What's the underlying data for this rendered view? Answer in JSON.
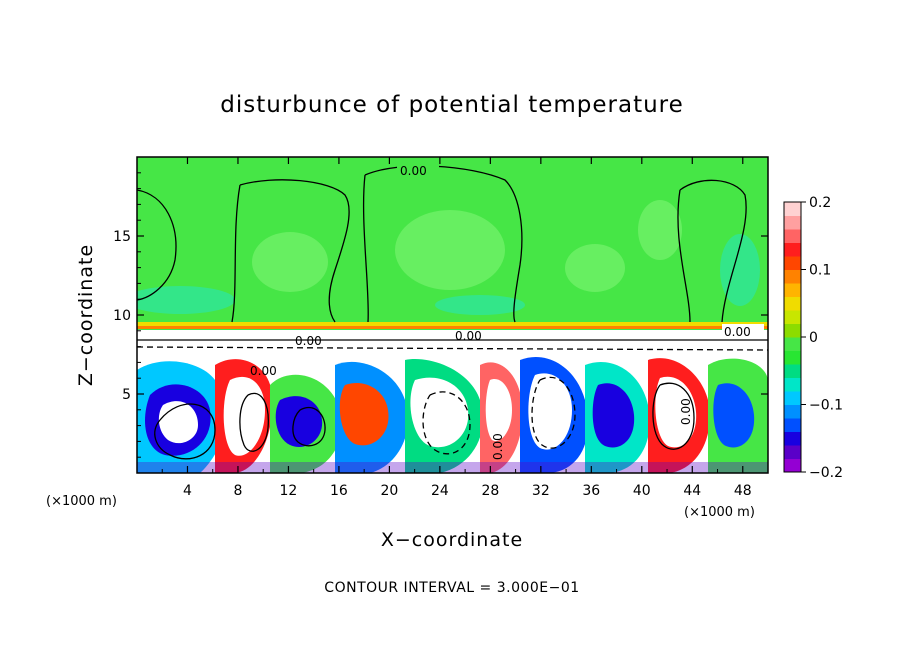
{
  "chart_data": {
    "type": "heatmap",
    "title": "disturbunce of potential temperature",
    "xlabel": "X−coordinate",
    "ylabel": "Z−coordinate",
    "x_unit_left": "(×1000 m)",
    "x_unit_right": "(×1000 m)",
    "xlim": [
      0,
      50
    ],
    "ylim": [
      0,
      20
    ],
    "x_ticks": [
      4,
      8,
      12,
      16,
      20,
      24,
      28,
      32,
      36,
      40,
      44,
      48
    ],
    "x_tick_labels": [
      "4",
      "8",
      "12",
      "16",
      "20",
      "24",
      "28",
      "32",
      "36",
      "40",
      "44",
      "48"
    ],
    "y_ticks": [
      5,
      10,
      15
    ],
    "y_tick_labels": [
      "5",
      "10",
      "15"
    ],
    "colorbar": {
      "min": -0.2,
      "max": 0.2,
      "ticks": [
        0.2,
        0.1,
        0,
        -0.1,
        -0.2
      ],
      "tick_labels": [
        "0.2",
        "0.1",
        "0",
        "−0.1",
        "−0.2"
      ],
      "colors": [
        "#9400d3",
        "#5a00c8",
        "#1800e0",
        "#0050ff",
        "#0090ff",
        "#00c8ff",
        "#00e6c8",
        "#00dc82",
        "#28e632",
        "#46e646",
        "#8cdc00",
        "#c8e600",
        "#f0dc00",
        "#ffb400",
        "#ff8200",
        "#ff4600",
        "#ff1e1e",
        "#ff6464",
        "#ffa0a0",
        "#ffd2d2"
      ]
    },
    "contour_labels": [
      "0.00",
      "0.00",
      "0.00",
      "0.00",
      "0.00",
      "0.00",
      "0.00"
    ],
    "footer": "CONTOUR INTERVAL = 3.000E−01"
  }
}
